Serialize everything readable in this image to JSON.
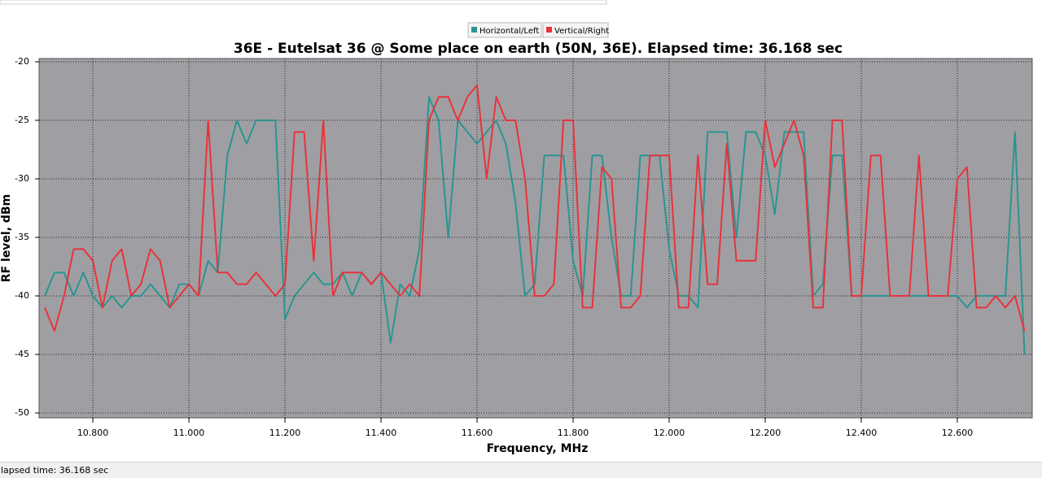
{
  "chart_data": {
    "type": "line",
    "title": "36E - Eutelsat 36 @ Some place on earth (50N, 36E). Elapsed time: 36.168 sec",
    "x_label": "Frequency, MHz",
    "y_label": "RF level, dBm",
    "x": [
      10.7,
      10.72,
      10.74,
      10.76,
      10.78,
      10.8,
      10.82,
      10.84,
      10.86,
      10.88,
      10.9,
      10.92,
      10.94,
      10.96,
      10.98,
      11.0,
      11.02,
      11.04,
      11.06,
      11.08,
      11.1,
      11.12,
      11.14,
      11.16,
      11.18,
      11.2,
      11.22,
      11.24,
      11.26,
      11.28,
      11.3,
      11.32,
      11.34,
      11.36,
      11.38,
      11.4,
      11.42,
      11.44,
      11.46,
      11.48,
      11.5,
      11.52,
      11.54,
      11.56,
      11.58,
      11.6,
      11.62,
      11.64,
      11.66,
      11.68,
      11.7,
      11.72,
      11.74,
      11.76,
      11.78,
      11.8,
      11.82,
      11.84,
      11.86,
      11.88,
      11.9,
      11.92,
      11.94,
      11.96,
      11.98,
      12.0,
      12.02,
      12.04,
      12.06,
      12.08,
      12.1,
      12.12,
      12.14,
      12.16,
      12.18,
      12.2,
      12.22,
      12.24,
      12.26,
      12.28,
      12.3,
      12.32,
      12.34,
      12.36,
      12.38,
      12.4,
      12.42,
      12.44,
      12.46,
      12.48,
      12.5,
      12.52,
      12.54,
      12.56,
      12.58,
      12.6,
      12.62,
      12.64,
      12.66,
      12.68,
      12.7,
      12.72,
      12.74
    ],
    "series": [
      {
        "name": "Horizontal/Left",
        "color": "#2a9591",
        "values": [
          -40,
          -38,
          -38,
          -40,
          -38,
          -40,
          -41,
          -40,
          -41,
          -40,
          -40,
          -39,
          -40,
          -41,
          -39,
          -39,
          -40,
          -37,
          -38,
          -28,
          -25,
          -27,
          -25,
          -25,
          -25,
          -42,
          -40,
          -39,
          -38,
          -39,
          -39,
          -38,
          -40,
          -38,
          -39,
          -38,
          -44,
          -39,
          -40,
          -36,
          -23,
          -25,
          -35,
          -25,
          -26,
          -27,
          -26,
          -25,
          -27,
          -32,
          -40,
          -39,
          -28,
          -28,
          -28,
          -37,
          -40,
          -28,
          -28,
          -35,
          -40,
          -40,
          -28,
          -28,
          -28,
          -36,
          -40,
          -40,
          -41,
          -26,
          -26,
          -26,
          -35,
          -26,
          -26,
          -28,
          -33,
          -26,
          -26,
          -26,
          -40,
          -39,
          -28,
          -28,
          -40,
          -40,
          -40,
          -40,
          -40,
          -40,
          -40,
          -40,
          -40,
          -40,
          -40,
          -40,
          -41,
          -40,
          -40,
          -40,
          -40,
          -26,
          -45
        ]
      },
      {
        "name": "Vertical/Right",
        "color": "#e8333b",
        "values": [
          -41,
          -43,
          -40,
          -36,
          -36,
          -37,
          -41,
          -37,
          -36,
          -40,
          -39,
          -36,
          -37,
          -41,
          -40,
          -39,
          -40,
          -25,
          -38,
          -38,
          -39,
          -39,
          -38,
          -39,
          -40,
          -39,
          -26,
          -26,
          -37,
          -25,
          -40,
          -38,
          -38,
          -38,
          -39,
          -38,
          -39,
          -40,
          -39,
          -40,
          -25,
          -23,
          -23,
          -25,
          -23,
          -22,
          -30,
          -23,
          -25,
          -25,
          -30,
          -40,
          -40,
          -39,
          -25,
          -25,
          -41,
          -41,
          -29,
          -30,
          -41,
          -41,
          -40,
          -28,
          -28,
          -28,
          -41,
          -41,
          -28,
          -39,
          -39,
          -27,
          -37,
          -37,
          -37,
          -25,
          -29,
          -27,
          -25,
          -28,
          -41,
          -41,
          -25,
          -25,
          -40,
          -40,
          -28,
          -28,
          -40,
          -40,
          -40,
          -28,
          -40,
          -40,
          -40,
          -30,
          -29,
          -41,
          -41,
          -40,
          -41,
          -40,
          -43
        ]
      }
    ],
    "xlim": [
      10.688,
      12.756
    ],
    "ylim": [
      -50,
      -20
    ],
    "xticks": [
      {
        "value": 10.8,
        "label": "10.800"
      },
      {
        "value": 11.0,
        "label": "11.000"
      },
      {
        "value": 11.2,
        "label": "11.200"
      },
      {
        "value": 11.4,
        "label": "11.400"
      },
      {
        "value": 11.6,
        "label": "11.600"
      },
      {
        "value": 11.8,
        "label": "11.800"
      },
      {
        "value": 12.0,
        "label": "12.000"
      },
      {
        "value": 12.2,
        "label": "12.200"
      },
      {
        "value": 12.4,
        "label": "12.400"
      },
      {
        "value": 12.6,
        "label": "12.600"
      }
    ],
    "yticks": [
      -50,
      -45,
      -40,
      -35,
      -30,
      -25,
      -20
    ],
    "grid": true,
    "legend": "top"
  },
  "status_bar": "lapsed time: 36.168 sec"
}
